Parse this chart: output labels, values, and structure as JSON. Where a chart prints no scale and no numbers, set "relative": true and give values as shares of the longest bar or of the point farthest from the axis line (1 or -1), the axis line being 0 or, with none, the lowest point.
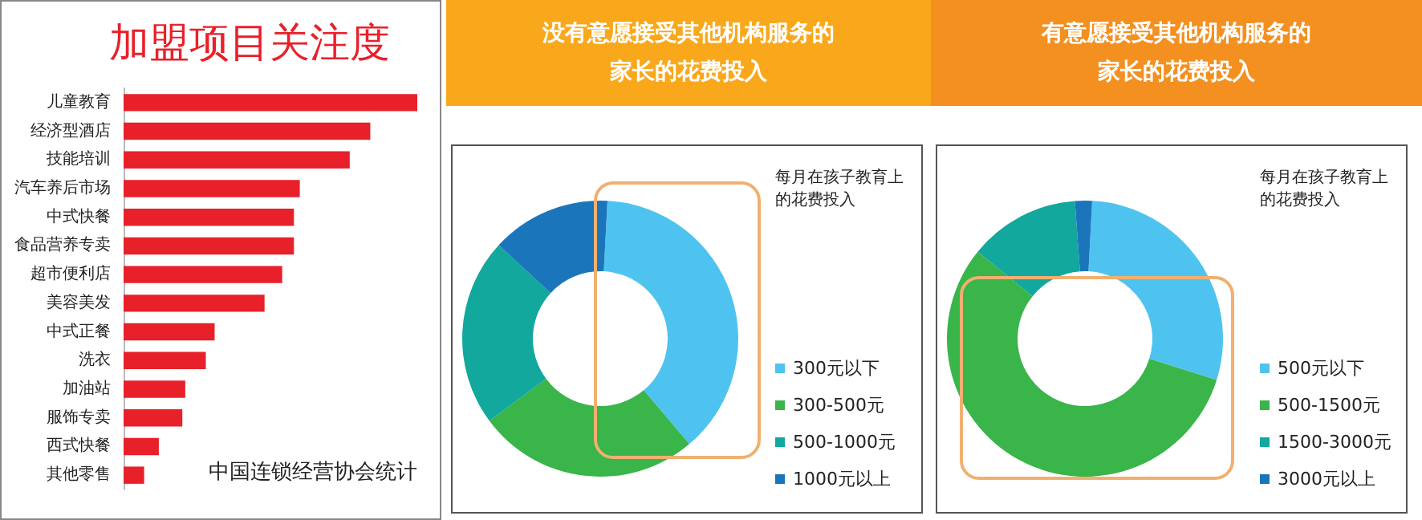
{
  "chart_data": [
    {
      "type": "bar",
      "orientation": "horizontal",
      "relative": true,
      "title": "加盟项目关注度",
      "categories": [
        "儿童教育",
        "经济型酒店",
        "技能培训",
        "汽车养后市场",
        "中式快餐",
        "食品营养专卖",
        "超市便利店",
        "美容美发",
        "中式正餐",
        "洗衣",
        "加油站",
        "服饰专卖",
        "西式快餐",
        "其他零售"
      ],
      "values": [
        1,
        0.84,
        0.77,
        0.6,
        0.58,
        0.58,
        0.54,
        0.48,
        0.31,
        0.28,
        0.21,
        0.2,
        0.12,
        0.07
      ],
      "color": "#e8202a",
      "annotations": [
        "中国连锁经营协会统计"
      ]
    },
    {
      "type": "donut",
      "title": "没有意愿接受其他机构服务的家长的花费投入",
      "legend_title": "每月在孩子教育上的花费投入",
      "legend": "right",
      "categories": [
        "300元以下",
        "300-500元",
        "500-1000元",
        "1000元以上"
      ],
      "values": [
        38,
        26,
        22,
        14
      ],
      "colors": [
        "#4fc3f0",
        "#39b54a",
        "#12a89d",
        "#1b75bb"
      ]
    },
    {
      "type": "donut",
      "title": "有意愿接受其他机构服务的家长的花费投入",
      "legend_title": "每月在孩子教育上的花费投入",
      "legend": "right",
      "categories": [
        "500元以下",
        "500-1500元",
        "1500-3000元",
        "3000元以上"
      ],
      "values": [
        29,
        56,
        13,
        2
      ],
      "colors": [
        "#4fc3f0",
        "#39b54a",
        "#12a89d",
        "#1b75bb"
      ]
    }
  ]
}
